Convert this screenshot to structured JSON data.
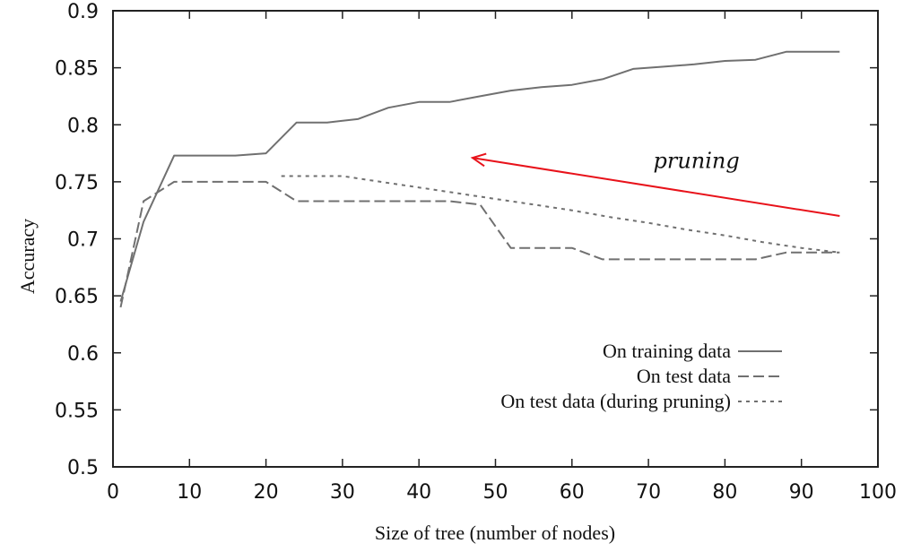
{
  "chart_data": {
    "type": "line",
    "title": "",
    "xlabel": "Size of tree (number of nodes)",
    "ylabel": "Accuracy",
    "xlim": [
      0,
      100
    ],
    "ylim": [
      0.5,
      0.9
    ],
    "xticks": [
      0,
      10,
      20,
      30,
      40,
      50,
      60,
      70,
      80,
      90,
      100
    ],
    "yticks": [
      0.5,
      0.55,
      0.6,
      0.65,
      0.7,
      0.75,
      0.8,
      0.85,
      0.9
    ],
    "xtick_labels": [
      "0",
      "10",
      "20",
      "30",
      "40",
      "50",
      "60",
      "70",
      "80",
      "90",
      "100"
    ],
    "ytick_labels": [
      "0.5",
      "0.55",
      "0.6",
      "0.65",
      "0.7",
      "0.75",
      "0.8",
      "0.85",
      "0.9"
    ],
    "grid": false,
    "legend_position": "bottom-right",
    "series": [
      {
        "name": "On training data",
        "style": "solid",
        "color": "#707070",
        "x": [
          1,
          4,
          8,
          12,
          16,
          20,
          24,
          28,
          32,
          36,
          40,
          44,
          48,
          52,
          56,
          60,
          64,
          68,
          72,
          76,
          80,
          84,
          88,
          92,
          95
        ],
        "y": [
          0.645,
          0.715,
          0.773,
          0.773,
          0.773,
          0.775,
          0.802,
          0.802,
          0.805,
          0.815,
          0.82,
          0.82,
          0.825,
          0.83,
          0.833,
          0.835,
          0.84,
          0.849,
          0.851,
          0.853,
          0.856,
          0.857,
          0.864,
          0.864,
          0.864
        ]
      },
      {
        "name": "On test data",
        "style": "dashed",
        "color": "#707070",
        "x": [
          1,
          4,
          8,
          12,
          16,
          20,
          24,
          28,
          32,
          36,
          40,
          44,
          48,
          52,
          56,
          60,
          64,
          68,
          72,
          76,
          80,
          84,
          88,
          92,
          95
        ],
        "y": [
          0.64,
          0.733,
          0.75,
          0.75,
          0.75,
          0.75,
          0.733,
          0.733,
          0.733,
          0.733,
          0.733,
          0.733,
          0.73,
          0.692,
          0.692,
          0.692,
          0.682,
          0.682,
          0.682,
          0.682,
          0.682,
          0.682,
          0.688,
          0.688,
          0.688
        ]
      },
      {
        "name": "On test data (during pruning)",
        "style": "dotted",
        "color": "#707070",
        "x": [
          22,
          26,
          30,
          35,
          40,
          45,
          50,
          55,
          60,
          65,
          70,
          75,
          80,
          85,
          90,
          95
        ],
        "y": [
          0.755,
          0.755,
          0.755,
          0.75,
          0.745,
          0.74,
          0.735,
          0.73,
          0.725,
          0.719,
          0.714,
          0.708,
          0.703,
          0.697,
          0.692,
          0.688
        ]
      }
    ],
    "annotations": [
      {
        "text": "pruning",
        "arrow_from": [
          95,
          0.72
        ],
        "arrow_to": [
          47,
          0.771
        ],
        "color": "#e8121a"
      }
    ]
  }
}
